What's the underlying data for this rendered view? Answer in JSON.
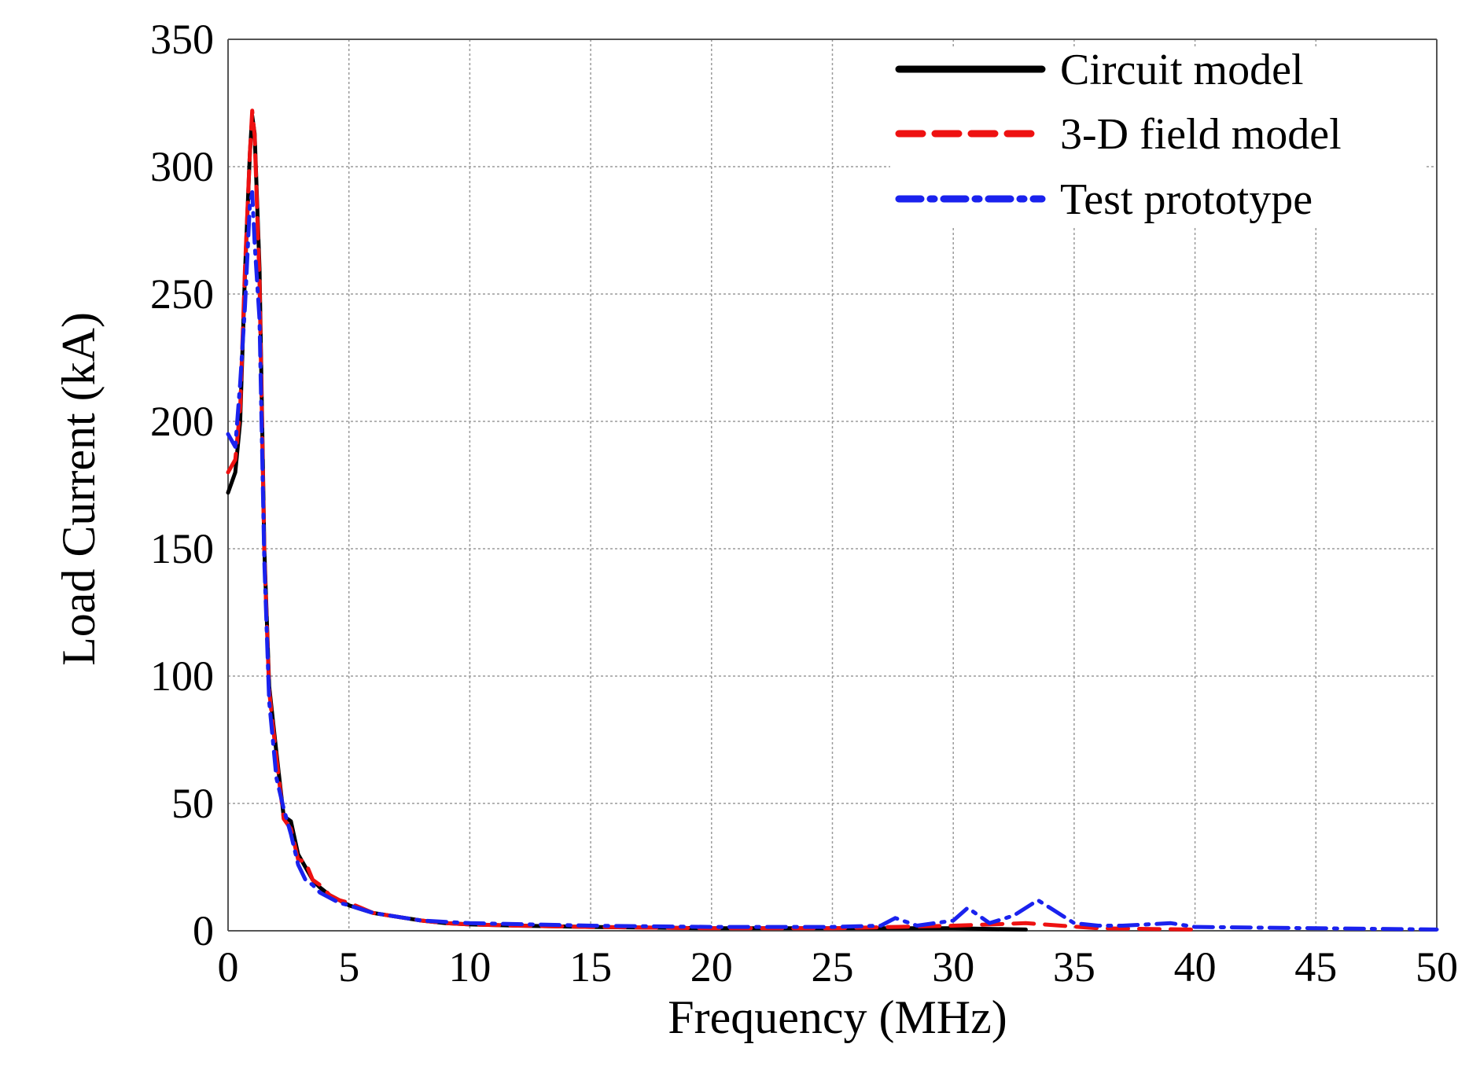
{
  "chart_data": {
    "type": "line",
    "title": "",
    "xlabel": "Frequency (MHz)",
    "ylabel": "Load Current (kA)",
    "xlim": [
      0,
      50
    ],
    "ylim": [
      0,
      350
    ],
    "xticks": [
      0,
      5,
      10,
      15,
      20,
      25,
      30,
      35,
      40,
      45,
      50
    ],
    "yticks": [
      0,
      50,
      100,
      150,
      200,
      250,
      300,
      350
    ],
    "grid": true,
    "legend_position": "top-right",
    "series": [
      {
        "name": "Circuit model",
        "color": "#000000",
        "style": "solid",
        "x": [
          0,
          0.3,
          0.5,
          0.7,
          0.9,
          1.0,
          1.1,
          1.3,
          1.5,
          1.7,
          2.0,
          2.3,
          2.6,
          2.9,
          3.2,
          3.5,
          3.8,
          4.2,
          4.6,
          5.0,
          5.5,
          6.0,
          7.0,
          8.0,
          9.0,
          10.0,
          12.0,
          15.0,
          20.0,
          25.0,
          30.0,
          33.0
        ],
        "y": [
          172,
          180,
          200,
          258,
          305,
          320,
          313,
          260,
          150,
          96,
          70,
          45,
          43,
          30,
          25,
          20,
          17,
          14,
          12,
          10,
          8.5,
          7,
          5.5,
          4,
          3,
          2.5,
          2,
          1.5,
          1,
          1,
          1,
          0.5
        ]
      },
      {
        "name": "3-D field model",
        "color": "#ee1111",
        "style": "dashed",
        "x": [
          0,
          0.3,
          0.5,
          0.7,
          0.9,
          1.0,
          1.1,
          1.3,
          1.5,
          1.7,
          2.0,
          2.3,
          2.6,
          2.9,
          3.2,
          3.5,
          3.8,
          4.2,
          4.6,
          5.0,
          5.5,
          6.0,
          7.0,
          8.0,
          9.0,
          10.0,
          12.0,
          15.0,
          20.0,
          25.0,
          30.0,
          33.0,
          36.0,
          40.0
        ],
        "y": [
          180,
          185,
          205,
          260,
          305,
          322,
          312,
          255,
          148,
          94,
          68,
          44,
          40,
          28,
          27,
          20,
          18,
          14,
          12,
          11,
          9,
          7,
          5.5,
          4,
          3,
          2.5,
          2,
          1.5,
          1,
          1,
          2,
          3,
          1,
          0.5
        ]
      },
      {
        "name": "Test prototype",
        "color": "#1a22ee",
        "style": "dashdot",
        "x": [
          0,
          0.3,
          0.5,
          0.7,
          0.9,
          1.0,
          1.1,
          1.3,
          1.5,
          1.7,
          2.0,
          2.3,
          2.6,
          2.9,
          3.2,
          3.5,
          3.8,
          4.2,
          4.6,
          5.0,
          6.0,
          8.0,
          10.0,
          15.0,
          20.0,
          25.0,
          27.0,
          27.6,
          28.5,
          30.0,
          30.6,
          31.5,
          32.5,
          33.5,
          34.0,
          35.0,
          36.0,
          37.0,
          39.0,
          40.0,
          45.0,
          50.0
        ],
        "y": [
          195,
          190,
          215,
          245,
          285,
          290,
          270,
          240,
          145,
          90,
          60,
          48,
          38,
          26,
          20,
          18,
          15,
          13,
          11,
          10,
          7,
          4,
          3,
          2,
          1.5,
          1.5,
          2,
          5,
          2,
          4,
          9,
          3,
          6,
          12,
          9,
          3,
          2,
          2,
          3,
          1.5,
          1,
          0.5
        ]
      }
    ]
  }
}
